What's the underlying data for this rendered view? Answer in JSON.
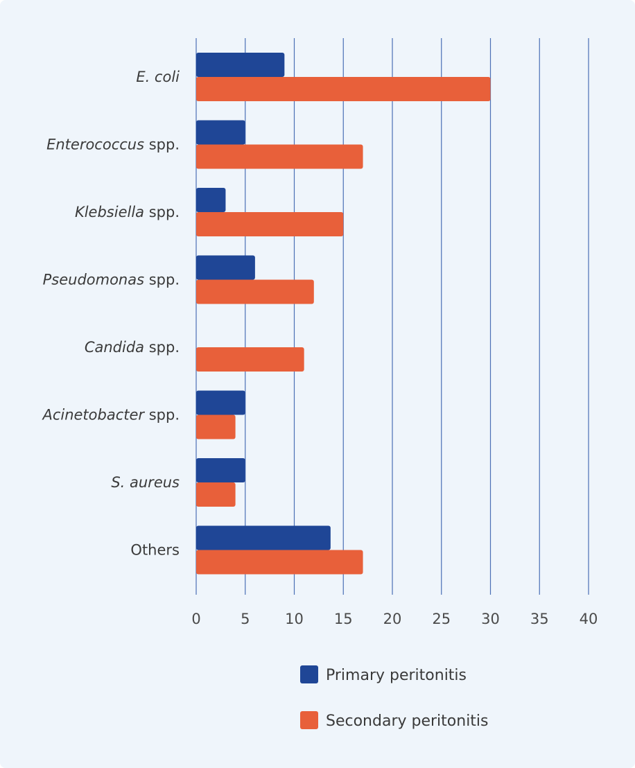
{
  "chart_data": {
    "type": "bar",
    "orientation": "horizontal",
    "categories": [
      {
        "italic": "E. coli",
        "suffix": ""
      },
      {
        "italic": "Enterococcus",
        "suffix": " spp."
      },
      {
        "italic": "Klebsiella",
        "suffix": " spp."
      },
      {
        "italic": "Pseudomonas",
        "suffix": " spp."
      },
      {
        "italic": "Candida",
        "suffix": " spp."
      },
      {
        "italic": "Acinetobacter",
        "suffix": " spp."
      },
      {
        "italic": "S. aureus",
        "suffix": ""
      },
      {
        "italic": "",
        "suffix": "Others"
      }
    ],
    "series": [
      {
        "name": "Primary peritonitis",
        "color": "#1f4696",
        "values": [
          9,
          5,
          3,
          6,
          0,
          5,
          5,
          13.7
        ]
      },
      {
        "name": "Secondary peritonitis",
        "color": "#e8603a",
        "values": [
          30,
          17,
          15,
          12,
          11,
          4,
          4,
          17
        ]
      }
    ],
    "xlim": [
      0,
      40
    ],
    "xticks": [
      0,
      5,
      10,
      15,
      20,
      25,
      30,
      35,
      40
    ],
    "grid": true,
    "grid_color": "#4a6fb5",
    "legend_position": "bottom",
    "title": "",
    "xlabel": "",
    "ylabel": ""
  }
}
